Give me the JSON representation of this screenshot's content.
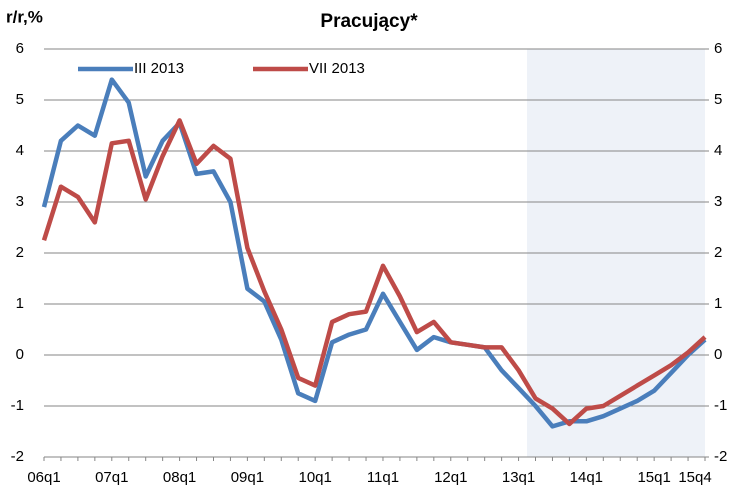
{
  "chart_data": {
    "type": "line",
    "title": "Pracujący*",
    "y_label": "r/r,%",
    "categories": [
      "06q1",
      null,
      null,
      null,
      "07q1",
      null,
      null,
      null,
      "08q1",
      null,
      null,
      null,
      "09q1",
      null,
      null,
      null,
      "10q1",
      null,
      null,
      null,
      "11q1",
      null,
      null,
      null,
      "12q1",
      null,
      null,
      null,
      "13q1",
      null,
      null,
      null,
      "14q1",
      null,
      null,
      null,
      "15q1",
      null,
      null,
      "15q4"
    ],
    "series": [
      {
        "name": "III 2013",
        "color": "#4a7ebb",
        "values": [
          2.9,
          4.2,
          4.5,
          4.3,
          5.4,
          4.95,
          3.5,
          4.2,
          4.55,
          3.55,
          3.6,
          3.0,
          1.3,
          1.05,
          0.3,
          -0.75,
          -0.9,
          0.25,
          0.4,
          0.5,
          1.2,
          0.65,
          0.1,
          0.35,
          0.25,
          0.2,
          0.15,
          -0.3,
          -0.65,
          -1.0,
          -1.4,
          -1.3,
          -1.3,
          -1.2,
          -1.05,
          -0.9,
          -0.7,
          -0.35,
          0.0,
          0.3
        ]
      },
      {
        "name": "VII 2013",
        "color": "#be4b48",
        "values": [
          2.25,
          3.3,
          3.1,
          2.6,
          4.15,
          4.2,
          3.05,
          3.9,
          4.6,
          3.75,
          4.1,
          3.85,
          2.1,
          1.25,
          0.5,
          -0.45,
          -0.6,
          0.65,
          0.8,
          0.85,
          1.75,
          1.15,
          0.45,
          0.65,
          0.25,
          0.2,
          0.15,
          0.15,
          -0.3,
          -0.85,
          -1.05,
          -1.35,
          -1.05,
          -1.0,
          -0.8,
          -0.6,
          -0.4,
          -0.2,
          0.05,
          0.35
        ]
      }
    ],
    "ylim": [
      -2,
      6
    ],
    "yticks": [
      -2,
      -1,
      0,
      1,
      2,
      3,
      4,
      5,
      6
    ],
    "y2lim": [
      -2,
      6
    ],
    "y2ticks": [
      -2,
      -1,
      0,
      1,
      2,
      3,
      4,
      5,
      6
    ],
    "grid": true,
    "shade_from_index": 29,
    "shade_color": "#eef2f8",
    "legend": "top-left"
  }
}
